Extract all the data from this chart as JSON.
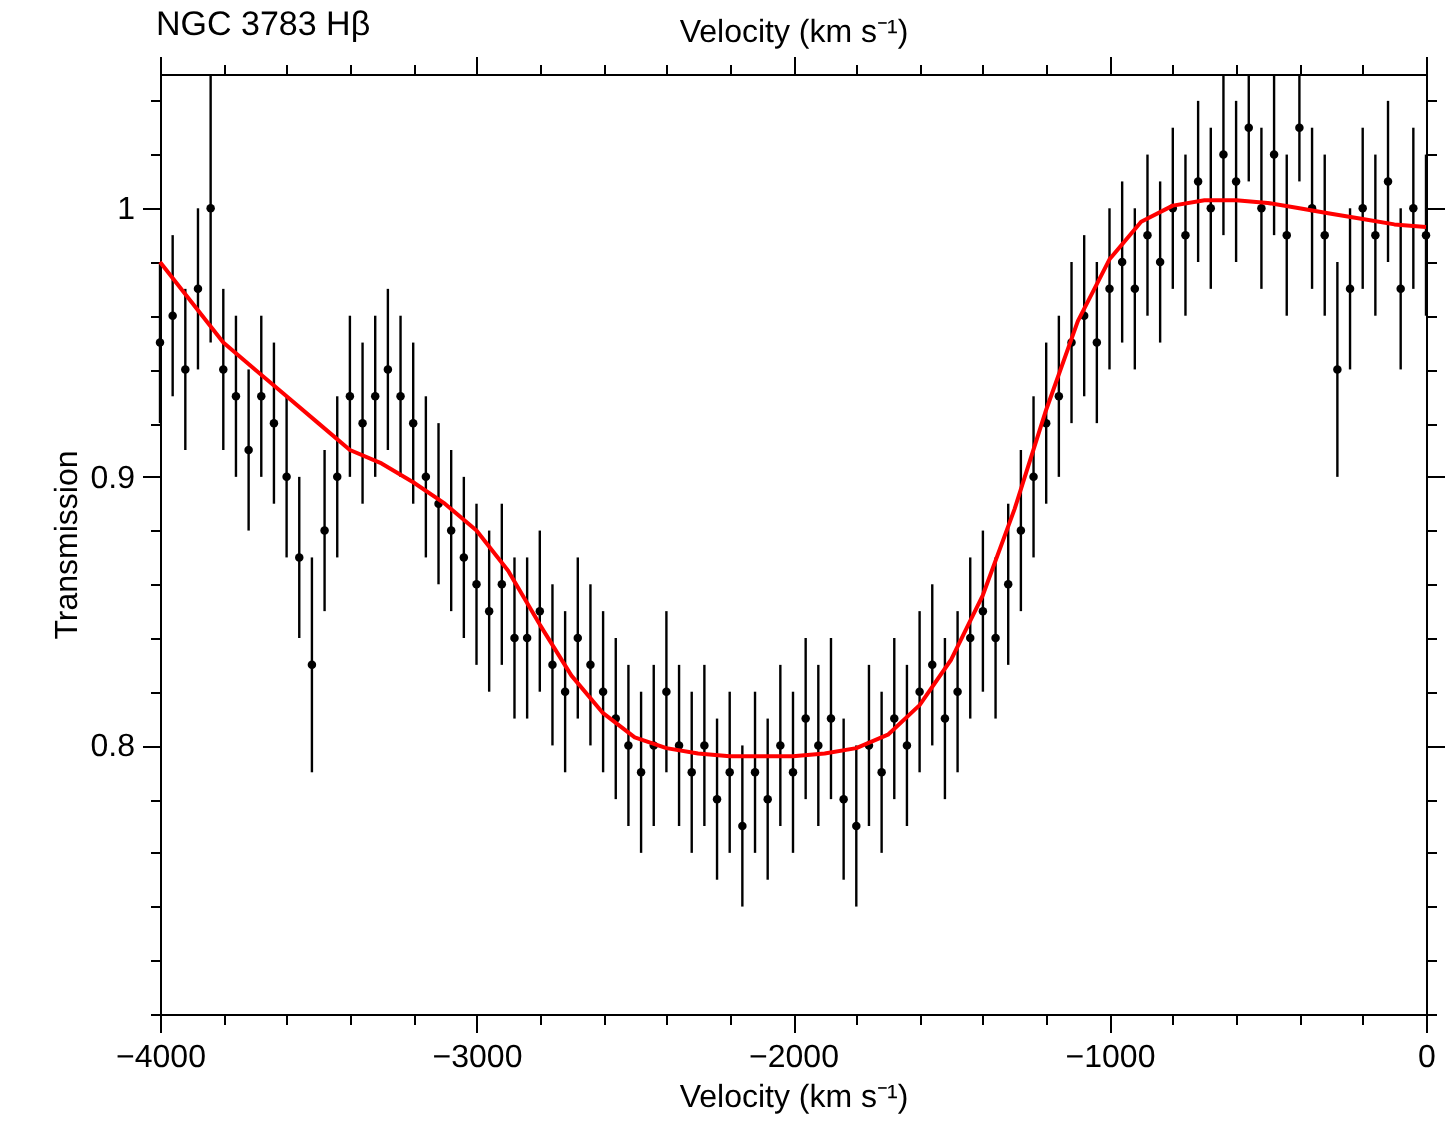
{
  "chart_data": {
    "type": "scatter",
    "title": "NGC 3783 Hβ",
    "xlabel": "Velocity (km s⁻¹)",
    "x2label": "Velocity (km s⁻¹)",
    "ylabel": "Transmission",
    "xlim": [
      -4000,
      0
    ],
    "xticks": [
      -4000,
      {
        "value": -3800,
        "label": null
      },
      {
        "value": -3600,
        "label": null
      },
      {
        "value": -3400,
        "label": null
      },
      {
        "value": -3200,
        "label": null
      },
      -3000,
      {
        "value": -2800,
        "label": null
      },
      {
        "value": -2600,
        "label": null
      },
      {
        "value": -2400,
        "label": null
      },
      {
        "value": -2200,
        "label": null
      },
      -2000,
      {
        "value": -1800,
        "label": null
      },
      {
        "value": -1600,
        "label": null
      },
      {
        "value": -1400,
        "label": null
      },
      {
        "value": -1200,
        "label": null
      },
      -1000,
      {
        "value": -800,
        "label": null
      },
      {
        "value": -600,
        "label": null
      },
      {
        "value": -400,
        "label": null
      },
      {
        "value": -200,
        "label": null
      },
      0
    ],
    "ylim": [
      0.7,
      1.05
    ],
    "yticks": [
      {
        "value": 0.7,
        "label": null
      },
      {
        "value": 0.72,
        "label": null
      },
      {
        "value": 0.74,
        "label": null
      },
      {
        "value": 0.76,
        "label": null
      },
      {
        "value": 0.78,
        "label": null
      },
      0.8,
      {
        "value": 0.82,
        "label": null
      },
      {
        "value": 0.84,
        "label": null
      },
      {
        "value": 0.86,
        "label": null
      },
      {
        "value": 0.88,
        "label": null
      },
      0.9,
      {
        "value": 0.92,
        "label": null
      },
      {
        "value": 0.94,
        "label": null
      },
      {
        "value": 0.96,
        "label": null
      },
      {
        "value": 0.98,
        "label": null
      },
      1,
      {
        "value": 1.02,
        "label": null
      },
      {
        "value": 1.04,
        "label": null
      }
    ],
    "grid": false,
    "series": [
      {
        "type": "scatter",
        "color": "#000000",
        "marker": "circle",
        "x": [
          -4000,
          -3960,
          -3920,
          -3880,
          -3840,
          -3800,
          -3760,
          -3720,
          -3680,
          -3640,
          -3600,
          -3560,
          -3520,
          -3480,
          -3440,
          -3400,
          -3360,
          -3320,
          -3280,
          -3240,
          -3200,
          -3160,
          -3120,
          -3080,
          -3040,
          -3000,
          -2960,
          -2920,
          -2880,
          -2840,
          -2800,
          -2760,
          -2720,
          -2680,
          -2640,
          -2600,
          -2560,
          -2520,
          -2480,
          -2440,
          -2400,
          -2360,
          -2320,
          -2280,
          -2240,
          -2200,
          -2160,
          -2120,
          -2080,
          -2040,
          -2000,
          -1960,
          -1920,
          -1880,
          -1840,
          -1800,
          -1760,
          -1720,
          -1680,
          -1640,
          -1600,
          -1560,
          -1520,
          -1480,
          -1440,
          -1400,
          -1360,
          -1320,
          -1280,
          -1240,
          -1200,
          -1160,
          -1120,
          -1080,
          -1040,
          -1000,
          -960,
          -920,
          -880,
          -840,
          -800,
          -760,
          -720,
          -680,
          -640,
          -600,
          -560,
          -520,
          -480,
          -440,
          -400,
          -360,
          -320,
          -280,
          -240,
          -200,
          -160,
          -120,
          -80,
          -40,
          0
        ],
        "values": [
          0.95,
          0.96,
          0.94,
          0.97,
          1.0,
          0.94,
          0.93,
          0.91,
          0.93,
          0.92,
          0.9,
          0.87,
          0.83,
          0.88,
          0.9,
          0.93,
          0.92,
          0.93,
          0.94,
          0.93,
          0.92,
          0.9,
          0.89,
          0.88,
          0.87,
          0.86,
          0.85,
          0.86,
          0.84,
          0.84,
          0.85,
          0.83,
          0.82,
          0.84,
          0.83,
          0.82,
          0.81,
          0.8,
          0.79,
          0.8,
          0.82,
          0.8,
          0.79,
          0.8,
          0.78,
          0.79,
          0.77,
          0.79,
          0.78,
          0.8,
          0.79,
          0.81,
          0.8,
          0.81,
          0.78,
          0.77,
          0.8,
          0.79,
          0.81,
          0.8,
          0.82,
          0.83,
          0.81,
          0.82,
          0.84,
          0.85,
          0.84,
          0.86,
          0.88,
          0.9,
          0.92,
          0.93,
          0.95,
          0.96,
          0.95,
          0.97,
          0.98,
          0.97,
          0.99,
          0.98,
          1.0,
          0.99,
          1.01,
          1.0,
          1.02,
          1.01,
          1.03,
          1.0,
          1.02,
          0.99,
          1.03,
          1.0,
          0.99,
          0.94,
          0.97,
          1.0,
          0.99,
          1.01,
          0.97,
          1.0,
          0.99
        ],
        "errors": [
          0.03,
          0.03,
          0.03,
          0.03,
          0.05,
          0.03,
          0.03,
          0.03,
          0.03,
          0.03,
          0.03,
          0.03,
          0.04,
          0.03,
          0.03,
          0.03,
          0.03,
          0.03,
          0.03,
          0.03,
          0.03,
          0.03,
          0.03,
          0.03,
          0.03,
          0.03,
          0.03,
          0.03,
          0.03,
          0.03,
          0.03,
          0.03,
          0.03,
          0.03,
          0.03,
          0.03,
          0.03,
          0.03,
          0.03,
          0.03,
          0.03,
          0.03,
          0.03,
          0.03,
          0.03,
          0.03,
          0.03,
          0.03,
          0.03,
          0.03,
          0.03,
          0.03,
          0.03,
          0.03,
          0.03,
          0.03,
          0.03,
          0.03,
          0.03,
          0.03,
          0.03,
          0.03,
          0.03,
          0.03,
          0.03,
          0.03,
          0.03,
          0.03,
          0.03,
          0.03,
          0.03,
          0.03,
          0.03,
          0.03,
          0.03,
          0.03,
          0.03,
          0.03,
          0.03,
          0.03,
          0.03,
          0.03,
          0.03,
          0.03,
          0.03,
          0.03,
          0.02,
          0.03,
          0.03,
          0.03,
          0.02,
          0.03,
          0.03,
          0.04,
          0.03,
          0.03,
          0.03,
          0.03,
          0.03,
          0.03,
          0.03
        ]
      },
      {
        "type": "line",
        "color": "#ff0000",
        "x": [
          -4000,
          -3900,
          -3800,
          -3700,
          -3600,
          -3500,
          -3400,
          -3300,
          -3200,
          -3100,
          -3000,
          -2900,
          -2800,
          -2700,
          -2600,
          -2500,
          -2400,
          -2300,
          -2200,
          -2100,
          -2000,
          -1900,
          -1800,
          -1700,
          -1600,
          -1500,
          -1400,
          -1300,
          -1200,
          -1100,
          -1000,
          -900,
          -800,
          -700,
          -600,
          -500,
          -400,
          -300,
          -200,
          -100,
          0
        ],
        "values": [
          0.98,
          0.965,
          0.95,
          0.94,
          0.93,
          0.92,
          0.91,
          0.905,
          0.898,
          0.89,
          0.88,
          0.865,
          0.845,
          0.826,
          0.812,
          0.803,
          0.799,
          0.797,
          0.796,
          0.796,
          0.796,
          0.797,
          0.799,
          0.804,
          0.815,
          0.832,
          0.856,
          0.888,
          0.925,
          0.958,
          0.981,
          0.995,
          1.001,
          1.003,
          1.003,
          1.002,
          1.0,
          0.998,
          0.996,
          0.994,
          0.993
        ]
      }
    ]
  }
}
